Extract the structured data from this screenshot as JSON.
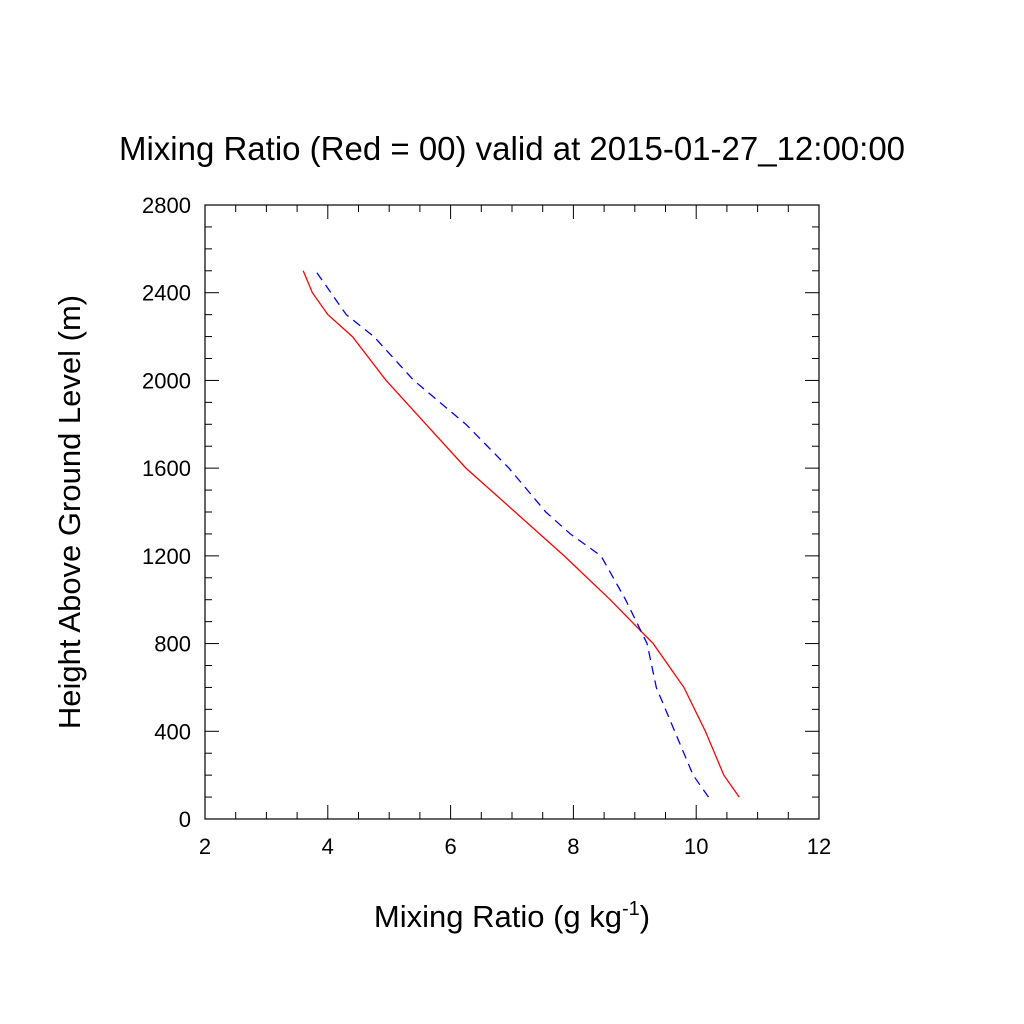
{
  "chart_data": {
    "type": "line",
    "title": "Mixing Ratio (Red = 00) valid at 2015-01-27_12:00:00",
    "xlabel": "Mixing Ratio (g kg",
    "xlabel_superscript": "-1",
    "xlabel_suffix": ")",
    "ylabel": "Height Above Ground Level (m)",
    "xlim": [
      2,
      12
    ],
    "ylim": [
      0,
      2800
    ],
    "x_ticks": [
      2,
      4,
      6,
      8,
      10,
      12
    ],
    "y_ticks": [
      0,
      400,
      800,
      1200,
      1600,
      2000,
      2400,
      2800
    ],
    "x_ticks_labels": [
      "2",
      "4",
      "6",
      "8",
      "10",
      "12"
    ],
    "y_ticks_labels": [
      "0",
      "400",
      "800",
      "1200",
      "1600",
      "2000",
      "2400",
      "2800"
    ],
    "grid": false,
    "series": [
      {
        "color": "#ff0000",
        "dash": "solid",
        "points": [
          [
            10.7,
            100
          ],
          [
            10.45,
            200
          ],
          [
            10.15,
            400
          ],
          [
            9.8,
            600
          ],
          [
            9.3,
            800
          ],
          [
            8.6,
            1000
          ],
          [
            7.85,
            1200
          ],
          [
            7.05,
            1400
          ],
          [
            6.25,
            1600
          ],
          [
            5.6,
            1800
          ],
          [
            4.95,
            2000
          ],
          [
            4.4,
            2200
          ],
          [
            4.0,
            2300
          ],
          [
            3.75,
            2400
          ],
          [
            3.6,
            2500
          ]
        ]
      },
      {
        "color": "#0000ff",
        "dash": "dashed",
        "points": [
          [
            10.2,
            100
          ],
          [
            9.95,
            200
          ],
          [
            9.65,
            400
          ],
          [
            9.35,
            600
          ],
          [
            9.2,
            800
          ],
          [
            8.85,
            1000
          ],
          [
            8.45,
            1200
          ],
          [
            7.95,
            1300
          ],
          [
            7.55,
            1400
          ],
          [
            6.95,
            1600
          ],
          [
            6.25,
            1800
          ],
          [
            5.4,
            2000
          ],
          [
            4.75,
            2200
          ],
          [
            4.3,
            2300
          ],
          [
            4.05,
            2400
          ],
          [
            3.8,
            2500
          ]
        ]
      }
    ]
  }
}
